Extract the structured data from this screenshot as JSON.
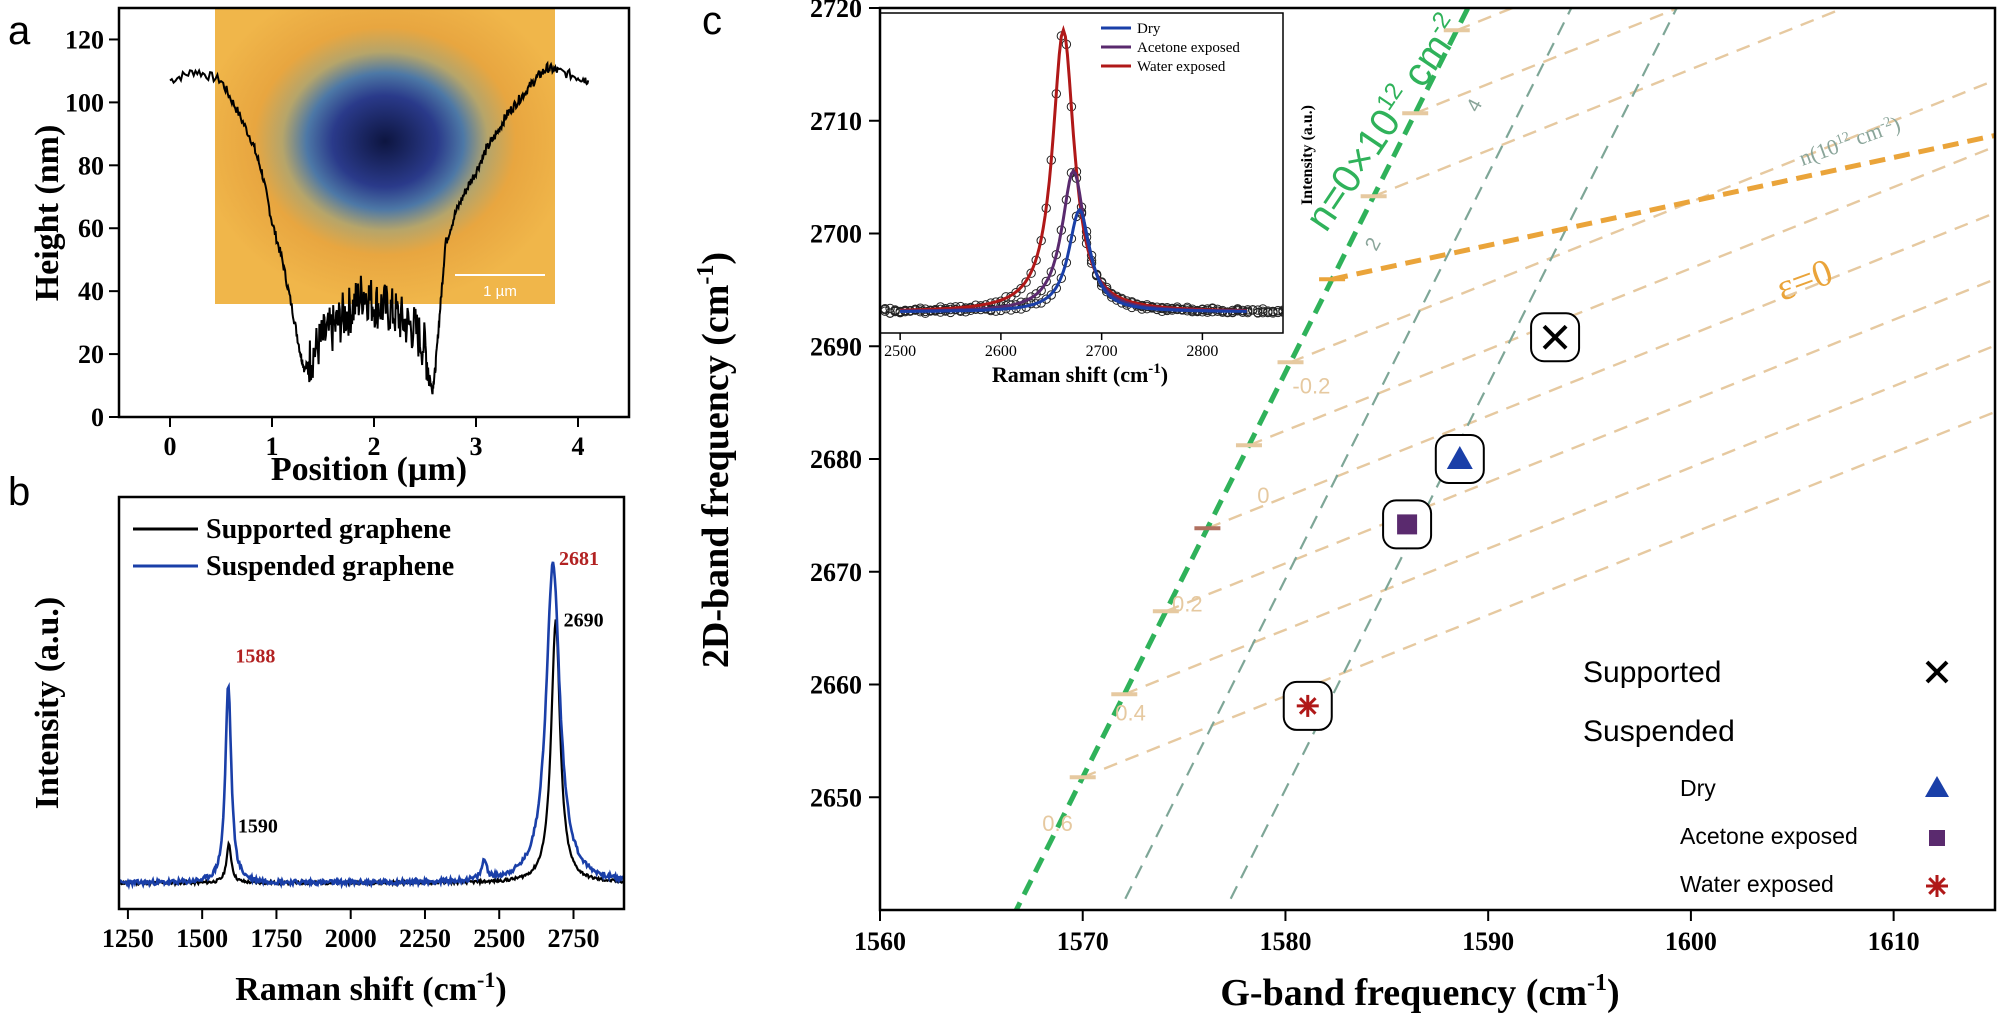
{
  "colors": {
    "black": "#000000",
    "blue": "#1a3fa8",
    "purple": "#5a2a6e",
    "red": "#b01818",
    "green": "#2fb25a",
    "orange": "#eaa43a",
    "tan": "#e6c9a0",
    "teal": "#7ea697",
    "peak_red": "#b22222"
  },
  "panel_labels": {
    "a": "a",
    "b": "b",
    "c": "c"
  },
  "chart_data": [
    {
      "id": "a",
      "type": "line",
      "xlabel": "Position (µm)",
      "ylabel": "Height (nm)",
      "xlim": [
        -0.5,
        4.5
      ],
      "ylim": [
        0,
        130
      ],
      "xticks": [
        0,
        1,
        2,
        3,
        4
      ],
      "yticks": [
        0,
        20,
        40,
        60,
        80,
        100,
        120
      ],
      "xtick_labels": [
        "0",
        "1",
        "2",
        "3",
        "4"
      ],
      "ytick_labels": [
        "0",
        "20",
        "40",
        "60",
        "80",
        "100",
        "120"
      ],
      "inset_image": {
        "scale_bar_label": "1 µm"
      },
      "series": [
        {
          "x": [
            0,
            0.25,
            0.5,
            0.65,
            0.8,
            0.9,
            1.0,
            1.1,
            1.2,
            1.28,
            1.32,
            1.4,
            1.5,
            1.6,
            1.7,
            1.8,
            1.9,
            2.0,
            2.1,
            2.2,
            2.3,
            2.4,
            2.5,
            2.57,
            2.6,
            2.65,
            2.7,
            2.8,
            2.9,
            3.0,
            3.1,
            3.2,
            3.3,
            3.4,
            3.5,
            3.6,
            3.7,
            3.8,
            4.0,
            4.1
          ],
          "y": [
            107,
            110,
            107,
            98,
            88,
            78,
            62,
            50,
            34,
            20,
            15,
            20,
            25,
            28,
            32,
            35,
            40,
            36,
            35,
            33,
            30,
            28,
            22,
            8,
            15,
            35,
            55,
            65,
            72,
            78,
            85,
            90,
            96,
            100,
            104,
            108,
            111,
            110,
            108,
            107
          ]
        }
      ]
    },
    {
      "id": "b",
      "type": "line",
      "xlabel": "Raman shift (cm-1)",
      "ylabel": "Intensity (a.u.)",
      "xlim": [
        1220,
        2920
      ],
      "xticks": [
        1250,
        1500,
        1750,
        2000,
        2250,
        2500,
        2750
      ],
      "xtick_labels": [
        "1250",
        "1500",
        "1750",
        "2000",
        "2250",
        "2500",
        "2750"
      ],
      "legend_position": "top-left",
      "series": [
        {
          "name": "Supported graphene",
          "color": "#000000",
          "peaks": [
            {
              "x": 1590,
              "height": 0.12,
              "width": 10,
              "label": "1590"
            },
            {
              "x": 2690,
              "height": 0.82,
              "width": 18,
              "label": "2690"
            }
          ]
        },
        {
          "name": "Suspended graphene",
          "color": "#1a3fa8",
          "peaks": [
            {
              "x": 1588,
              "height": 0.62,
              "width": 12,
              "label": "1588"
            },
            {
              "x": 2681,
              "height": 1.0,
              "width": 28,
              "label": "2681"
            },
            {
              "x": 2450,
              "height": 0.06,
              "width": 10,
              "label": ""
            }
          ]
        }
      ]
    },
    {
      "id": "c",
      "type": "scatter",
      "xlabel": "G-band frequency (cm-1)",
      "ylabel": "2D-band frequency (cm-1)",
      "xlim": [
        1560,
        1615
      ],
      "ylim": [
        2640,
        2720
      ],
      "xticks": [
        1560,
        1570,
        1580,
        1590,
        1600,
        1610
      ],
      "yticks": [
        2650,
        2660,
        2670,
        2680,
        2690,
        2700,
        2710,
        2720
      ],
      "xtick_labels": [
        "1560",
        "1570",
        "1580",
        "1590",
        "1600",
        "1610"
      ],
      "ytick_labels": [
        "2650",
        "2660",
        "2670",
        "2680",
        "2690",
        "2700",
        "2710",
        "2720"
      ],
      "strain_line_label": "n=0×10",
      "strain_line_sup": "12",
      "strain_line_unit": "cm",
      "strain_line_unit_sup": "-2",
      "doping_line_label": "ε=0",
      "doping_axis_label": "n(10",
      "doping_axis_sup": "12",
      "doping_axis_unit": "cm",
      "doping_axis_unit_sup": "-2",
      "doping_axis_close": ")",
      "strain_ticks": [
        "-0.2",
        "0",
        "0.2",
        "0.4",
        "0.6"
      ],
      "doping_ticks": [
        "2",
        "4"
      ],
      "points": [
        {
          "name": "Supported",
          "x": 1593.3,
          "y": 2690.8,
          "marker": "x",
          "color": "#000000"
        },
        {
          "name": "Dry",
          "x": 1588.6,
          "y": 2680.0,
          "marker": "triangle",
          "color": "#1a3fa8"
        },
        {
          "name": "Acetone exposed",
          "x": 1586.0,
          "y": 2674.2,
          "marker": "square",
          "color": "#5a2a6e"
        },
        {
          "name": "Water exposed",
          "x": 1581.1,
          "y": 2658.1,
          "marker": "asterisk",
          "color": "#b01818"
        }
      ],
      "legend": {
        "supported": "Supported",
        "suspended": "Suspended",
        "dry": "Dry",
        "acetone": "Acetone exposed",
        "water": "Water exposed"
      }
    },
    {
      "id": "c-inset",
      "type": "line",
      "xlabel": "Raman shift (cm-1)",
      "ylabel": "Intensity (a.u.)",
      "xlim": [
        2480,
        2880
      ],
      "xticks": [
        2500,
        2600,
        2700,
        2800
      ],
      "xtick_labels": [
        "2500",
        "2600",
        "2700",
        "2800"
      ],
      "legend_position": "top-right",
      "series": [
        {
          "name": "Dry",
          "color": "#1a3fa8",
          "center": 2678,
          "height": 0.34,
          "width": 13
        },
        {
          "name": "Acetone exposed",
          "color": "#5a2a6e",
          "center": 2672,
          "height": 0.47,
          "width": 14
        },
        {
          "name": "Water exposed",
          "color": "#b01818",
          "center": 2662,
          "height": 0.94,
          "width": 13
        }
      ]
    }
  ],
  "axis_unit_sup": "-1"
}
